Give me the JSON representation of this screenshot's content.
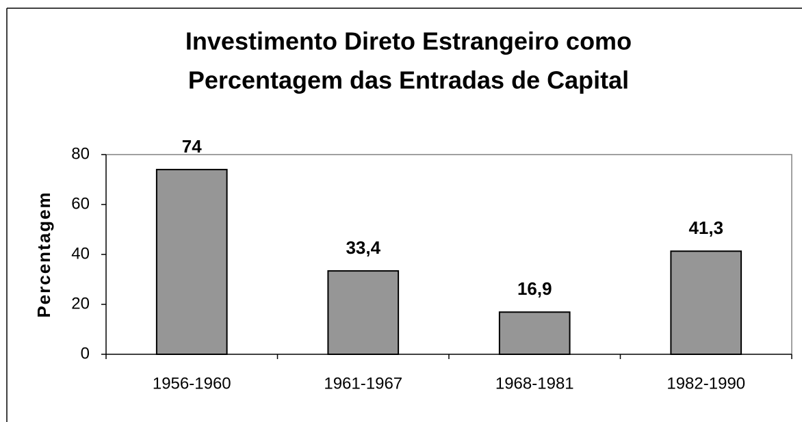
{
  "chart_data": {
    "type": "bar",
    "title": [
      "Investimento Direto Estrangeiro como",
      "Percentagem das Entradas de Capital"
    ],
    "ylabel": "Percentagem",
    "categories": [
      "1956-1960",
      "1961-1967",
      "1968-1981",
      "1982-1990"
    ],
    "values": [
      74,
      33.4,
      16.9,
      41.3
    ],
    "value_labels": [
      "74",
      "33,4",
      "16,9",
      "41,3"
    ],
    "color": "#969696",
    "ylim": [
      0,
      80
    ],
    "yticks": [
      0,
      20,
      40,
      60,
      80
    ]
  }
}
